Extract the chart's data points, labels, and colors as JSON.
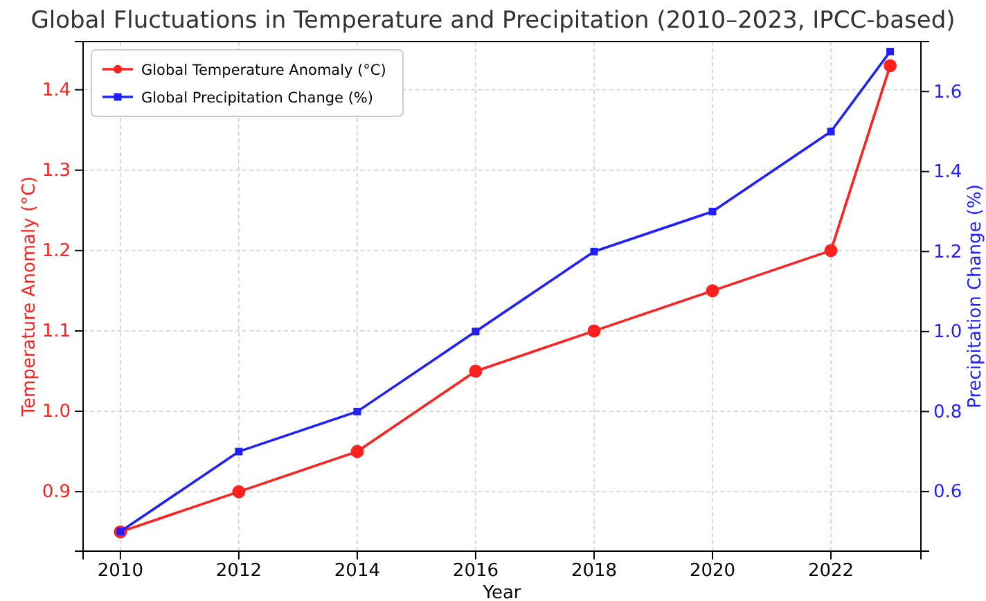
{
  "chart_data": {
    "type": "line",
    "title": "Global Fluctuations in Temperature and Precipitation (2010–2023, IPCC-based)",
    "xlabel": "Year",
    "ylabel": "Temperature Anomaly (°C)",
    "y2label": "Precipitation Change (%)",
    "x": [
      2010,
      2012,
      2014,
      2016,
      2018,
      2020,
      2022,
      2023
    ],
    "series": [
      {
        "name": "Global Temperature Anomaly (°C)",
        "color": "#ff2020",
        "marker": "circle",
        "values": [
          0.85,
          0.9,
          0.95,
          1.05,
          1.1,
          1.15,
          1.2,
          1.43
        ]
      },
      {
        "name": "Global Precipitation Change (%)",
        "color": "#2020ff",
        "marker": "square",
        "axis": "y2",
        "values": [
          0.5,
          0.7,
          0.8,
          1.0,
          1.2,
          1.3,
          1.5,
          1.7
        ]
      }
    ],
    "xlim": [
      2009.37,
      2023.52
    ],
    "xticks": [
      2010,
      2012,
      2014,
      2016,
      2018,
      2020,
      2022
    ],
    "ylim": [
      0.826,
      1.46
    ],
    "yticks": [
      {
        "value": 0.9,
        "label": "0.9"
      },
      {
        "value": 1.0,
        "label": "1.0"
      },
      {
        "value": 1.1,
        "label": "1.1"
      },
      {
        "value": 1.2,
        "label": "1.2"
      },
      {
        "value": 1.3,
        "label": "1.3"
      },
      {
        "value": 1.4,
        "label": "1.4"
      }
    ],
    "y2lim": [
      0.451,
      1.725
    ],
    "y2ticks": [
      {
        "value": 0.6,
        "label": "0.6"
      },
      {
        "value": 0.8,
        "label": "0.8"
      },
      {
        "value": 1.0,
        "label": "1.0"
      },
      {
        "value": 1.2,
        "label": "1.2"
      },
      {
        "value": 1.4,
        "label": "1.4"
      },
      {
        "value": 1.6,
        "label": "1.6"
      }
    ],
    "grid": true,
    "legend": "top left",
    "line_style": "solid"
  }
}
